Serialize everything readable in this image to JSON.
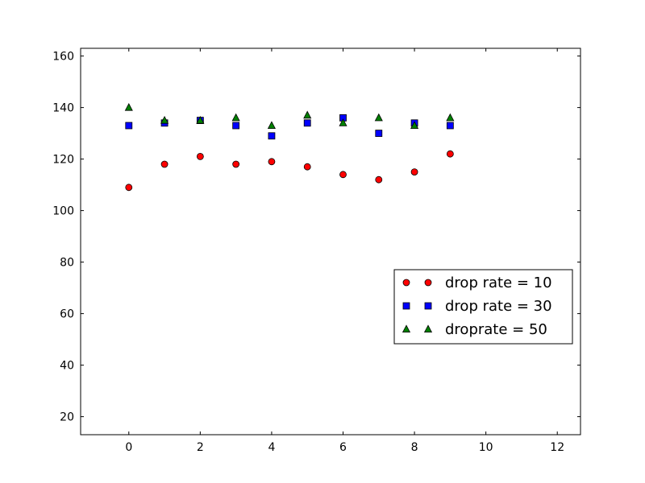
{
  "chart_data": {
    "type": "scatter",
    "title": "",
    "xlabel": "",
    "ylabel": "",
    "xlim": [
      -1.35,
      12.65
    ],
    "ylim": [
      13,
      163
    ],
    "xticks": [
      0,
      2,
      4,
      6,
      8,
      10,
      12
    ],
    "yticks": [
      20,
      40,
      60,
      80,
      100,
      120,
      140,
      160
    ],
    "grid": false,
    "legend_position": "center-right",
    "x": [
      0,
      1,
      2,
      3,
      4,
      5,
      6,
      7,
      8,
      9
    ],
    "series": [
      {
        "name": "drop rate = 10",
        "marker": "circle",
        "color": "#ff0000",
        "values": [
          109,
          118,
          121,
          118,
          119,
          117,
          114,
          112,
          115,
          122
        ]
      },
      {
        "name": "drop rate = 30",
        "marker": "square",
        "color": "#0000ff",
        "values": [
          133,
          134,
          135,
          133,
          129,
          134,
          136,
          130,
          134,
          133
        ]
      },
      {
        "name": "droprate = 50",
        "marker": "triangle",
        "color": "#008000",
        "values": [
          140,
          135,
          135,
          136,
          133,
          137,
          134,
          136,
          133,
          136
        ]
      }
    ]
  }
}
